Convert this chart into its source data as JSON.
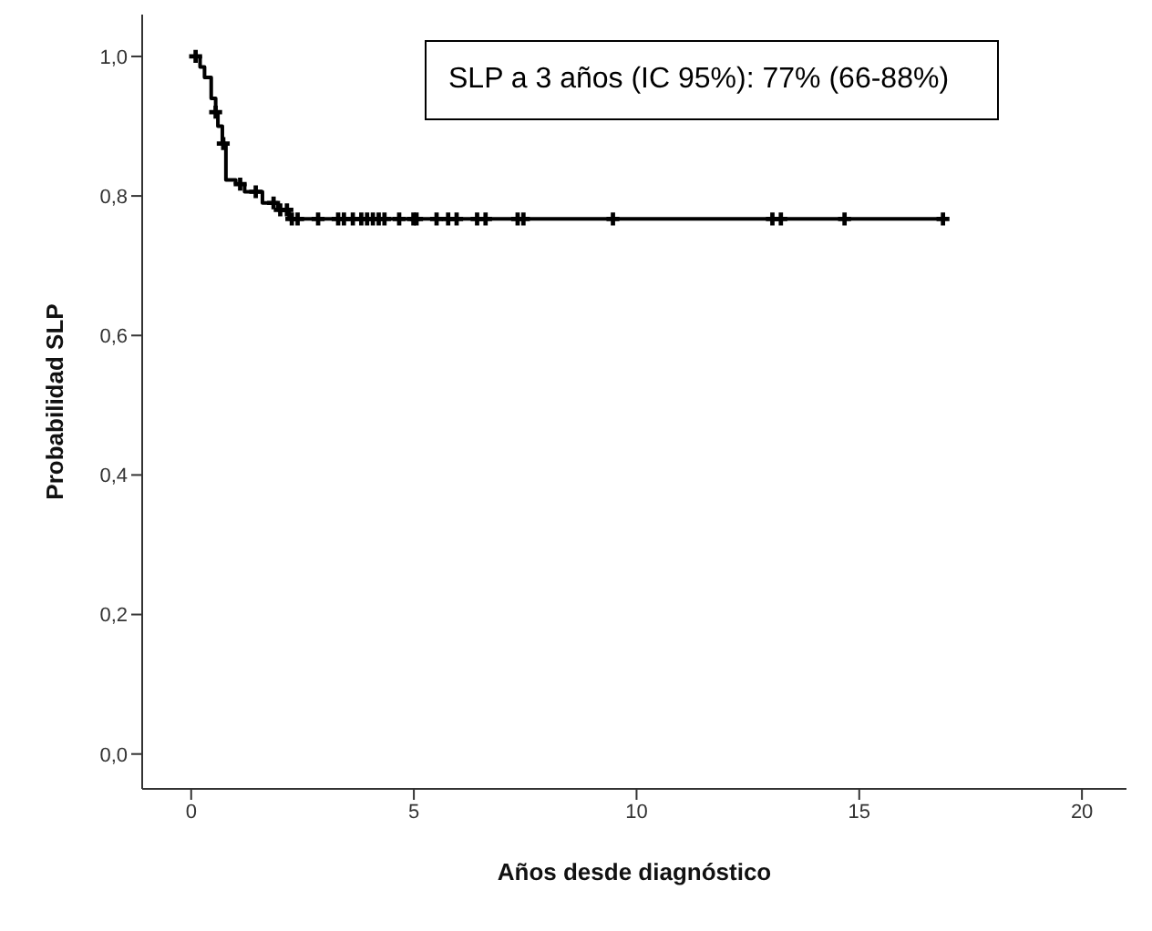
{
  "chart_data": {
    "type": "step",
    "xlabel": "Años desde diagnóstico",
    "ylabel": "Probabilidad SLP",
    "annotations": [
      "SLP a 3 años (IC 95%): 77% (66-88%)"
    ],
    "xlim": [
      -1.1,
      21
    ],
    "xticks": [
      0,
      5,
      10,
      15,
      20
    ],
    "ylim": [
      -0.05,
      1.06
    ],
    "yticks": [
      {
        "value": 0,
        "label": "0,0"
      },
      {
        "value": 0.2,
        "label": "0,2"
      },
      {
        "value": 0.4,
        "label": "0,4"
      },
      {
        "value": 0.6,
        "label": "0,6"
      },
      {
        "value": 0.8,
        "label": "0,8"
      },
      {
        "value": 1,
        "label": "1,0"
      }
    ],
    "grid": false,
    "legend": false,
    "series": [
      {
        "color": "#000000",
        "marker": "none",
        "x": [
          0,
          0.2,
          0.3,
          0.45,
          0.55,
          0.6,
          0.7,
          0.78,
          1.0,
          1.2,
          1.6,
          1.95,
          2.2,
          16.88
        ],
        "values": [
          1.0,
          0.985,
          0.97,
          0.94,
          0.92,
          0.9,
          0.875,
          0.823,
          0.817,
          0.806,
          0.79,
          0.78,
          0.767,
          0.767
        ]
      },
      {
        "type": "scatter",
        "color": "#000000",
        "marker": "cross",
        "x": [
          0.1,
          0.55,
          0.72,
          1.1,
          1.45,
          1.85,
          2.0,
          2.15,
          2.26,
          2.39,
          2.85,
          3.3,
          3.43,
          3.63,
          3.82,
          3.95,
          4.08,
          4.21,
          4.34,
          4.67,
          4.99,
          5.06,
          5.51,
          5.77,
          5.96,
          6.42,
          6.61,
          7.33,
          7.46,
          9.47,
          13.05,
          13.24,
          14.67,
          16.88
        ],
        "values": [
          1.0,
          0.92,
          0.875,
          0.817,
          0.806,
          0.79,
          0.78,
          0.78,
          0.767,
          0.767,
          0.767,
          0.767,
          0.767,
          0.767,
          0.767,
          0.767,
          0.767,
          0.767,
          0.767,
          0.767,
          0.767,
          0.767,
          0.767,
          0.767,
          0.767,
          0.767,
          0.767,
          0.767,
          0.767,
          0.767,
          0.767,
          0.767,
          0.767,
          0.767
        ]
      }
    ]
  }
}
